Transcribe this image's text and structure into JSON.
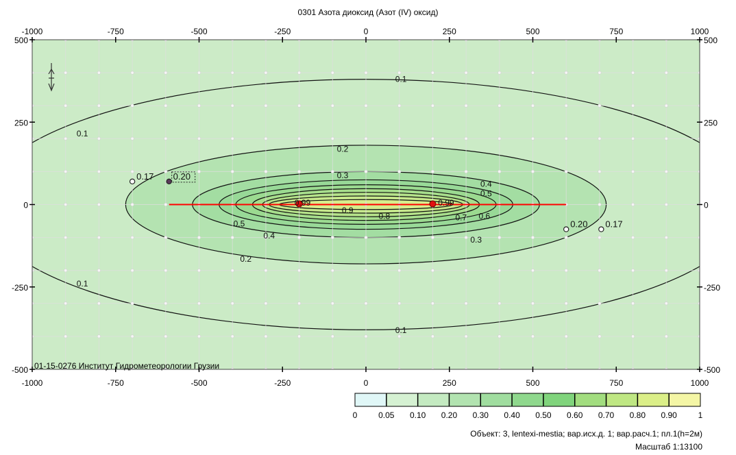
{
  "title": "0301 Азота диоксид (Азот (IV) оксид)",
  "footer_org": "01-15-0276 Институт Гидрометеорологии Грузии",
  "object_line": "Объект: 3, lentexi-mestia; вар.исх.д. 1; вар.расч.1; пл.1(h=2м)",
  "scale_line": "Масштаб 1:13100",
  "colors": {
    "background": "#ccebc7",
    "grid": "#dedede",
    "contour": "#111111",
    "source_line": "#ff0000",
    "source_point": "#e01010"
  },
  "chart_data": {
    "type": "contour",
    "title": "0301 Азота диоксид (Азот (IV) оксид)",
    "xlim": [
      -1000,
      1000
    ],
    "ylim": [
      -500,
      500
    ],
    "x_ticks": [
      -1000,
      -750,
      -500,
      -250,
      0,
      250,
      500,
      750,
      1000
    ],
    "x_tick_labels": [
      "-1000",
      "-750",
      "-500",
      "-250",
      "0",
      "250",
      "500",
      "750",
      "1000"
    ],
    "y_ticks": [
      500,
      250,
      0,
      -250,
      -500
    ],
    "y_tick_labels": [
      "500",
      "250",
      "0",
      "-250",
      "-500"
    ],
    "grid": true,
    "grid_step": 100,
    "contour_levels": [
      0.1,
      0.2,
      0.3,
      0.4,
      0.5,
      0.6,
      0.7,
      0.8,
      0.9
    ],
    "contours": [
      {
        "level": 0.1,
        "half_x": 1150,
        "half_y": 380,
        "fill": "#cbebc6"
      },
      {
        "level": 0.2,
        "half_x": 720,
        "half_y": 180,
        "fill": "#b4e3b1"
      },
      {
        "level": 0.3,
        "half_x": 520,
        "half_y": 100,
        "fill": "#a3dda2"
      },
      {
        "level": 0.4,
        "half_x": 440,
        "half_y": 75,
        "fill": "#98d997"
      },
      {
        "level": 0.5,
        "half_x": 390,
        "half_y": 60,
        "fill": "#9bda90"
      },
      {
        "level": 0.6,
        "half_x": 340,
        "half_y": 48,
        "fill": "#a7de8c"
      },
      {
        "level": 0.7,
        "half_x": 310,
        "half_y": 37,
        "fill": "#b5e28a"
      },
      {
        "level": 0.8,
        "half_x": 290,
        "half_y": 26,
        "fill": "#c6e88c"
      },
      {
        "level": 0.9,
        "half_x": 260,
        "half_y": 15,
        "fill": "#d7ed8d"
      }
    ],
    "contour_labels": [
      {
        "text": "0.1",
        "x": 105,
        "y": 380
      },
      {
        "text": "0.1",
        "x": 105,
        "y": -382
      },
      {
        "text": "0.1",
        "x": -850,
        "y": 215
      },
      {
        "text": "0.1",
        "x": -850,
        "y": -240
      },
      {
        "text": "0.2",
        "x": -70,
        "y": 168
      },
      {
        "text": "0.2",
        "x": -360,
        "y": -165
      },
      {
        "text": "0.3",
        "x": -70,
        "y": 88
      },
      {
        "text": "0.3",
        "x": 330,
        "y": -107
      },
      {
        "text": "0.4",
        "x": 360,
        "y": 62
      },
      {
        "text": "0.4",
        "x": -290,
        "y": -95
      },
      {
        "text": "0.5",
        "x": 360,
        "y": 33
      },
      {
        "text": "0.5",
        "x": -380,
        "y": -58
      },
      {
        "text": "0.6",
        "x": 355,
        "y": -35
      },
      {
        "text": "0.7",
        "x": 285,
        "y": -40
      },
      {
        "text": "0.8",
        "x": 55,
        "y": -35
      },
      {
        "text": "0.9",
        "x": -55,
        "y": -18
      },
      {
        "text": "0.99",
        "x": -190,
        "y": 5
      },
      {
        "text": "0.99",
        "x": 240,
        "y": 5
      }
    ],
    "source_line": {
      "x": [
        -590,
        600
      ],
      "y": [
        0,
        0
      ]
    },
    "sources": [
      {
        "x": -200,
        "y": 2
      },
      {
        "x": 200,
        "y": 2
      }
    ],
    "extra_points": [
      {
        "x": -590,
        "y": 70,
        "label": "0.20",
        "boxed": true
      },
      {
        "x": -700,
        "y": 70,
        "label": "0.17",
        "boxed": false
      },
      {
        "x": 600,
        "y": -75,
        "label": "0.20",
        "boxed": false
      },
      {
        "x": 705,
        "y": -75,
        "label": "0.17",
        "boxed": false
      }
    ],
    "legend": {
      "breaks": [
        "0",
        "0.05",
        "0.10",
        "0.20",
        "0.30",
        "0.40",
        "0.50",
        "0.60",
        "0.70",
        "0.80",
        "0.90",
        "1"
      ],
      "colors": [
        "#e0f7f7",
        "#d5f1d2",
        "#c4eac1",
        "#b2e3b0",
        "#a0dd9f",
        "#8fd88d",
        "#80d47c",
        "#a2dd7f",
        "#bfe783",
        "#dbef88",
        "#f4f6a5"
      ]
    }
  }
}
